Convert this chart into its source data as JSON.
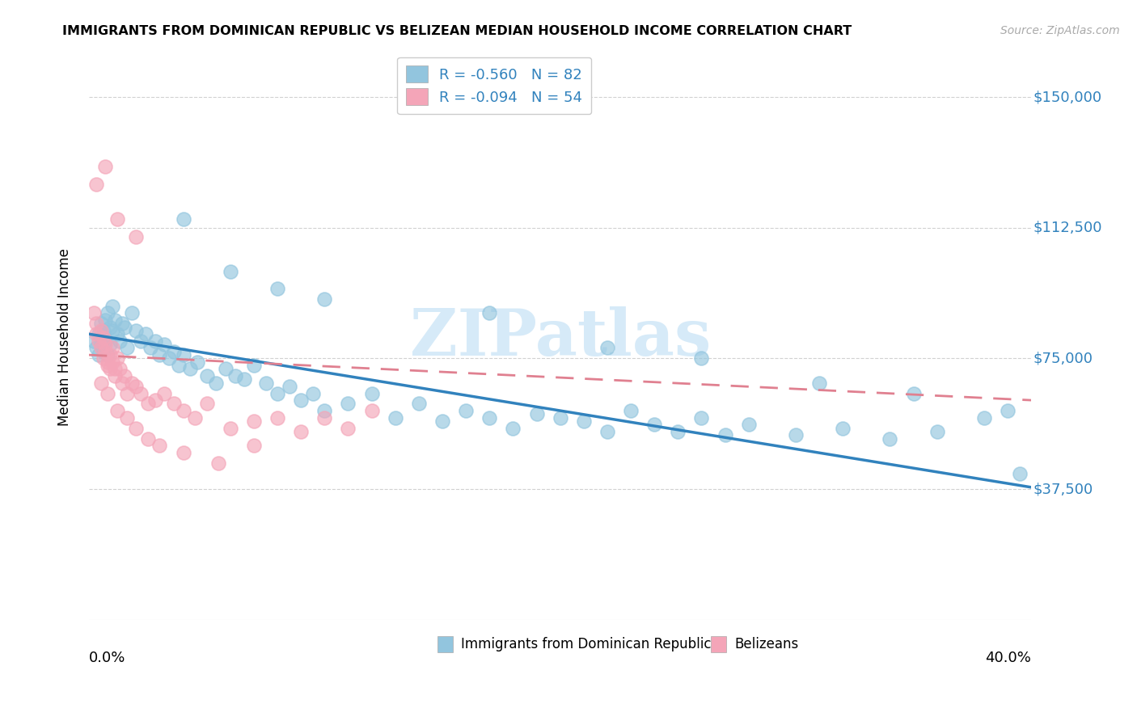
{
  "title": "IMMIGRANTS FROM DOMINICAN REPUBLIC VS BELIZEAN MEDIAN HOUSEHOLD INCOME CORRELATION CHART",
  "source": "Source: ZipAtlas.com",
  "ylabel": "Median Household Income",
  "ytick_labels": [
    "$37,500",
    "$75,000",
    "$112,500",
    "$150,000"
  ],
  "ytick_values": [
    37500,
    75000,
    112500,
    150000
  ],
  "ylim": [
    0,
    162000
  ],
  "xlim": [
    0.0,
    0.4
  ],
  "legend_line1": "R = -0.560   N = 82",
  "legend_line2": "R = -0.094   N = 54",
  "legend_label1": "Immigrants from Dominican Republic",
  "legend_label2": "Belizeans",
  "color_blue": "#92c5de",
  "color_pink": "#f4a5b8",
  "color_blue_line": "#3182bd",
  "color_pink_line": "#e08090",
  "color_text_blue": "#3182bd",
  "watermark_color": "#d6eaf8",
  "blue_x": [
    0.002,
    0.003,
    0.004,
    0.004,
    0.005,
    0.005,
    0.006,
    0.006,
    0.007,
    0.007,
    0.008,
    0.008,
    0.009,
    0.009,
    0.01,
    0.01,
    0.011,
    0.012,
    0.013,
    0.014,
    0.015,
    0.016,
    0.018,
    0.02,
    0.022,
    0.024,
    0.026,
    0.028,
    0.03,
    0.032,
    0.034,
    0.036,
    0.038,
    0.04,
    0.043,
    0.046,
    0.05,
    0.054,
    0.058,
    0.062,
    0.066,
    0.07,
    0.075,
    0.08,
    0.085,
    0.09,
    0.095,
    0.1,
    0.11,
    0.12,
    0.13,
    0.14,
    0.15,
    0.16,
    0.17,
    0.18,
    0.19,
    0.2,
    0.21,
    0.22,
    0.23,
    0.24,
    0.25,
    0.26,
    0.27,
    0.28,
    0.3,
    0.32,
    0.34,
    0.36,
    0.38,
    0.395,
    0.04,
    0.06,
    0.08,
    0.1,
    0.17,
    0.22,
    0.26,
    0.31,
    0.35,
    0.39
  ],
  "blue_y": [
    80000,
    78000,
    82000,
    76000,
    85000,
    79000,
    83000,
    77000,
    86000,
    80000,
    88000,
    76000,
    84000,
    79000,
    90000,
    83000,
    86000,
    82000,
    80000,
    85000,
    84000,
    78000,
    88000,
    83000,
    80000,
    82000,
    78000,
    80000,
    76000,
    79000,
    75000,
    77000,
    73000,
    76000,
    72000,
    74000,
    70000,
    68000,
    72000,
    70000,
    69000,
    73000,
    68000,
    65000,
    67000,
    63000,
    65000,
    60000,
    62000,
    65000,
    58000,
    62000,
    57000,
    60000,
    58000,
    55000,
    59000,
    58000,
    57000,
    54000,
    60000,
    56000,
    54000,
    58000,
    53000,
    56000,
    53000,
    55000,
    52000,
    54000,
    58000,
    42000,
    115000,
    100000,
    95000,
    92000,
    88000,
    78000,
    75000,
    68000,
    65000,
    60000
  ],
  "pink_x": [
    0.002,
    0.003,
    0.003,
    0.004,
    0.005,
    0.005,
    0.006,
    0.006,
    0.007,
    0.007,
    0.008,
    0.008,
    0.009,
    0.009,
    0.01,
    0.01,
    0.011,
    0.011,
    0.012,
    0.013,
    0.014,
    0.015,
    0.016,
    0.018,
    0.02,
    0.022,
    0.025,
    0.028,
    0.032,
    0.036,
    0.04,
    0.045,
    0.05,
    0.06,
    0.07,
    0.08,
    0.09,
    0.1,
    0.11,
    0.12,
    0.005,
    0.008,
    0.012,
    0.016,
    0.02,
    0.025,
    0.03,
    0.04,
    0.055,
    0.07,
    0.003,
    0.007,
    0.012,
    0.02
  ],
  "pink_y": [
    88000,
    85000,
    82000,
    80000,
    78000,
    83000,
    81000,
    75000,
    79000,
    77000,
    74000,
    73000,
    76000,
    72000,
    78000,
    74000,
    72000,
    70000,
    75000,
    72000,
    68000,
    70000,
    65000,
    68000,
    67000,
    65000,
    62000,
    63000,
    65000,
    62000,
    60000,
    58000,
    62000,
    55000,
    57000,
    58000,
    54000,
    58000,
    55000,
    60000,
    68000,
    65000,
    60000,
    58000,
    55000,
    52000,
    50000,
    48000,
    45000,
    50000,
    125000,
    130000,
    115000,
    110000
  ]
}
